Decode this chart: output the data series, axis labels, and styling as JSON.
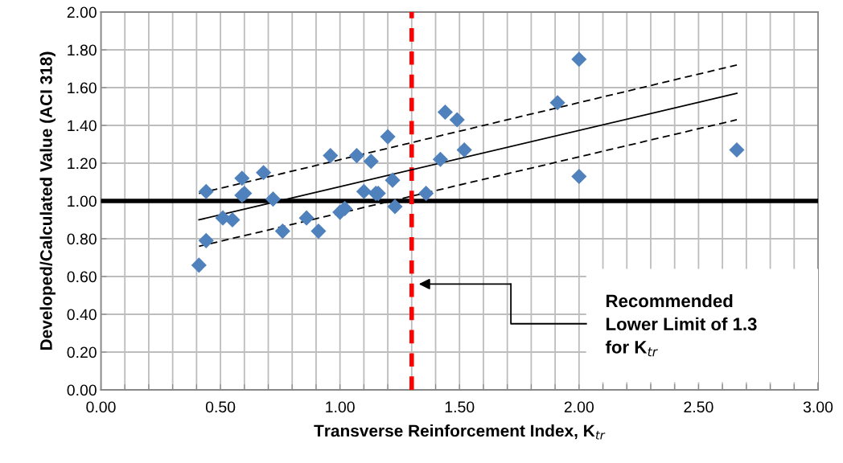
{
  "chart_data": {
    "type": "scatter",
    "xlabel": "Transverse Reinforcement Index, K$_{tr}$",
    "ylabel": "Developed/Calculated Value (ACI 318)",
    "series": [
      {
        "color": "#4f81bd",
        "marker": "diamond",
        "x": [
          0.41,
          0.44,
          0.44,
          0.51,
          0.55,
          0.59,
          0.59,
          0.6,
          0.68,
          0.72,
          0.76,
          0.86,
          0.91,
          0.96,
          1.0,
          1.02,
          1.07,
          1.1,
          1.13,
          1.15,
          1.16,
          1.2,
          1.22,
          1.23,
          1.36,
          1.42,
          1.44,
          1.49,
          1.52,
          1.91,
          2.0,
          2.0,
          2.66
        ],
        "values": [
          0.66,
          1.05,
          0.79,
          0.91,
          0.9,
          1.12,
          1.03,
          1.04,
          1.15,
          1.01,
          0.84,
          0.91,
          0.84,
          1.24,
          0.94,
          0.96,
          1.24,
          1.05,
          1.21,
          1.04,
          1.04,
          1.34,
          1.11,
          0.97,
          1.04,
          1.22,
          1.47,
          1.43,
          1.27,
          1.52,
          1.75,
          1.13,
          1.27
        ]
      },
      {
        "type": "line",
        "color": "#000000",
        "line_style": "solid",
        "x": [
          0.41,
          2.66
        ],
        "values": [
          0.9,
          1.57
        ]
      },
      {
        "type": "line",
        "color": "#000000",
        "line_style": "dashed",
        "x": [
          0.41,
          2.66
        ],
        "values": [
          1.04,
          1.72
        ]
      },
      {
        "type": "line",
        "color": "#000000",
        "line_style": "dashed",
        "x": [
          0.41,
          2.66
        ],
        "values": [
          0.76,
          1.43
        ]
      }
    ],
    "xlim": [
      0,
      3
    ],
    "ylim": [
      0,
      2
    ],
    "xticks": [
      {
        "value": 0,
        "label": "0.00"
      },
      {
        "value": 0.1,
        "label": null
      },
      {
        "value": 0.2,
        "label": null
      },
      {
        "value": 0.3,
        "label": null
      },
      {
        "value": 0.4,
        "label": null
      },
      {
        "value": 0.5,
        "label": "0.50"
      },
      {
        "value": 0.6,
        "label": null
      },
      {
        "value": 0.7,
        "label": null
      },
      {
        "value": 0.8,
        "label": null
      },
      {
        "value": 0.9,
        "label": null
      },
      {
        "value": 1,
        "label": "1.00"
      },
      {
        "value": 1.1,
        "label": null
      },
      {
        "value": 1.2,
        "label": null
      },
      {
        "value": 1.3,
        "label": null
      },
      {
        "value": 1.4,
        "label": null
      },
      {
        "value": 1.5,
        "label": "1.50"
      },
      {
        "value": 1.6,
        "label": null
      },
      {
        "value": 1.7,
        "label": null
      },
      {
        "value": 1.8,
        "label": null
      },
      {
        "value": 1.9,
        "label": null
      },
      {
        "value": 2,
        "label": "2.00"
      },
      {
        "value": 2.1,
        "label": null
      },
      {
        "value": 2.2,
        "label": null
      },
      {
        "value": 2.3,
        "label": null
      },
      {
        "value": 2.4,
        "label": null
      },
      {
        "value": 2.5,
        "label": "2.50"
      },
      {
        "value": 2.6,
        "label": null
      },
      {
        "value": 2.7,
        "label": null
      },
      {
        "value": 2.8,
        "label": null
      },
      {
        "value": 2.9,
        "label": null
      },
      {
        "value": 3,
        "label": "3.00"
      }
    ],
    "yticks": [
      {
        "value": 0,
        "label": "0.00"
      },
      {
        "value": 0.2,
        "label": "0.20"
      },
      {
        "value": 0.4,
        "label": "0.40"
      },
      {
        "value": 0.6,
        "label": "0.60"
      },
      {
        "value": 0.8,
        "label": "0.80"
      },
      {
        "value": 1,
        "label": "1.00"
      },
      {
        "value": 1.2,
        "label": "1.20"
      },
      {
        "value": 1.4,
        "label": "1.40"
      },
      {
        "value": 1.6,
        "label": "1.60"
      },
      {
        "value": 1.8,
        "label": "1.80"
      },
      {
        "value": 2,
        "label": "2.00"
      }
    ],
    "grid": true,
    "ref_lines": [
      {
        "axis": "y",
        "value": 1,
        "color": "#000000",
        "line_style": "solid"
      },
      {
        "axis": "x",
        "value": 1.3,
        "color": "#ff0000",
        "line_style": "dashed"
      }
    ],
    "annotations": [
      "Recommended\nLower Limit of 1.3\nfor K$_{tr}$"
    ]
  }
}
